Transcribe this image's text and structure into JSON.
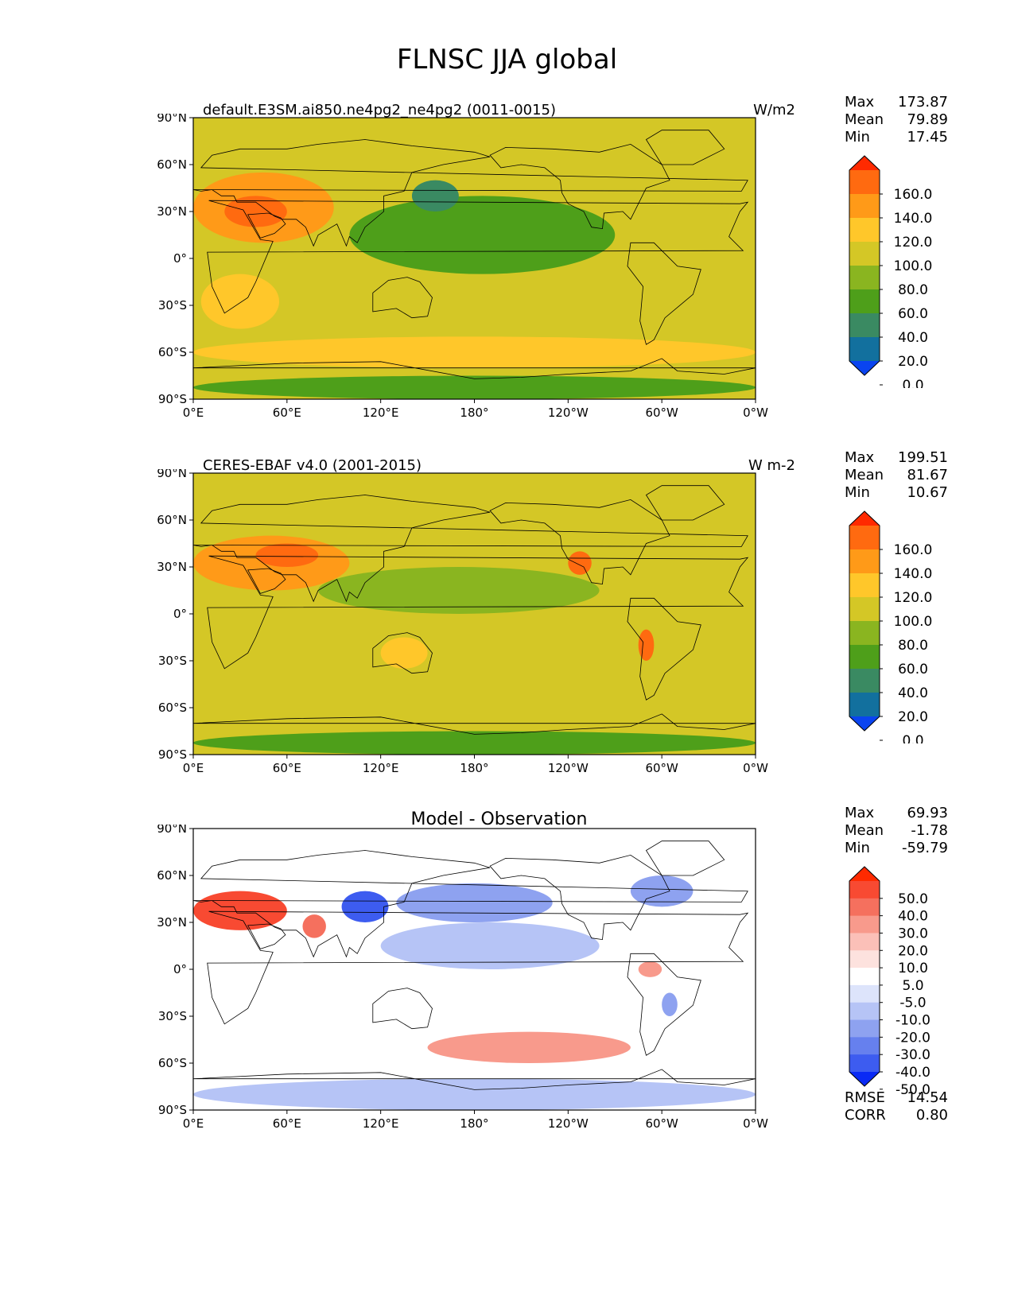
{
  "page": {
    "title": "FLNSC JJA global"
  },
  "axes": {
    "lat_ticks": [
      "90°N",
      "60°N",
      "30°N",
      "0°",
      "30°S",
      "60°S",
      "90°S"
    ],
    "lon_ticks": [
      "0°E",
      "60°E",
      "120°E",
      "180°",
      "120°W",
      "60°W",
      "0°W"
    ]
  },
  "panels": [
    {
      "title": "default.E3SM.ai850.ne4pg2_ne4pg2 (0011-0015)",
      "units": "W/m2",
      "stats": [
        {
          "label": "Max",
          "value": "173.87"
        },
        {
          "label": "Mean",
          "value": "79.89"
        },
        {
          "label": "Min",
          "value": "17.45"
        }
      ],
      "colorbar": {
        "labels": [
          "160.0",
          "140.0",
          "120.0",
          "100.0",
          "80.0",
          "60.0",
          "40.0",
          "20.0",
          "0.0"
        ],
        "colors": [
          "#ff2a00",
          "#ff6a10",
          "#ff9a18",
          "#ffc72a",
          "#d4c726",
          "#8ab520",
          "#4e9f1a",
          "#3a8a62",
          "#12709e",
          "#0a44f0"
        ]
      }
    },
    {
      "title": "CERES-EBAF v4.0 (2001-2015)",
      "units": "W m-2",
      "stats": [
        {
          "label": "Max",
          "value": "199.51"
        },
        {
          "label": "Mean",
          "value": "81.67"
        },
        {
          "label": "Min",
          "value": "10.67"
        }
      ],
      "colorbar": {
        "labels": [
          "160.0",
          "140.0",
          "120.0",
          "100.0",
          "80.0",
          "60.0",
          "40.0",
          "20.0",
          "0.0"
        ],
        "colors": [
          "#ff2a00",
          "#ff6a10",
          "#ff9a18",
          "#ffc72a",
          "#d4c726",
          "#8ab520",
          "#4e9f1a",
          "#3a8a62",
          "#12709e",
          "#0a44f0"
        ]
      }
    },
    {
      "title": "Model - Observation",
      "units": "",
      "stats": [
        {
          "label": "Max",
          "value": "69.93"
        },
        {
          "label": "Mean",
          "value": "-1.78"
        },
        {
          "label": "Min",
          "value": "-59.79"
        }
      ],
      "colorbar": {
        "labels": [
          "50.0",
          "40.0",
          "30.0",
          "20.0",
          "10.0",
          "5.0",
          "-5.0",
          "-10.0",
          "-20.0",
          "-30.0",
          "-40.0",
          "-50.0"
        ],
        "colors": [
          "#ff2a00",
          "#f84a32",
          "#f5705e",
          "#f89a8c",
          "#fbc0b8",
          "#fde2de",
          "#ffffff",
          "#dde4fb",
          "#b6c4f6",
          "#8ea2f0",
          "#6680ee",
          "#3d5cf0",
          "#0a2af5"
        ]
      },
      "error_stats": [
        {
          "label": "RMSE",
          "value": "14.54"
        },
        {
          "label": "CORR",
          "value": "0.80"
        }
      ]
    }
  ],
  "chart_data": [
    {
      "type": "heatmap",
      "title": "default.E3SM.ai850.ne4pg2_ne4pg2 (0011-0015)",
      "units": "W/m2",
      "xlim": [
        0,
        360
      ],
      "ylim": [
        -90,
        90
      ],
      "levels": [
        0,
        20,
        40,
        60,
        80,
        100,
        120,
        140,
        160
      ],
      "max": 173.87,
      "mean": 79.89,
      "min": 17.45,
      "regions": [
        {
          "lon": [
            0,
            90
          ],
          "lat": [
            10,
            55
          ],
          "value": 125
        },
        {
          "lon": [
            20,
            60
          ],
          "lat": [
            20,
            40
          ],
          "value": 150
        },
        {
          "lon": [
            100,
            270
          ],
          "lat": [
            -10,
            40
          ],
          "value": 55
        },
        {
          "lon": [
            140,
            170
          ],
          "lat": [
            30,
            50
          ],
          "value": 35
        },
        {
          "lon": [
            5,
            55
          ],
          "lat": [
            -45,
            -10
          ],
          "value": 105
        },
        {
          "lon": [
            0,
            360
          ],
          "lat": [
            -70,
            -50
          ],
          "value": 105
        },
        {
          "lon": [
            0,
            360
          ],
          "lat": [
            -90,
            -75
          ],
          "value": 45
        }
      ]
    },
    {
      "type": "heatmap",
      "title": "CERES-EBAF v4.0 (2001-2015)",
      "units": "W m-2",
      "xlim": [
        0,
        360
      ],
      "ylim": [
        -90,
        90
      ],
      "levels": [
        0,
        20,
        40,
        60,
        80,
        100,
        120,
        140,
        160
      ],
      "max": 199.51,
      "mean": 81.67,
      "min": 10.67,
      "regions": [
        {
          "lon": [
            0,
            100
          ],
          "lat": [
            15,
            50
          ],
          "value": 130
        },
        {
          "lon": [
            40,
            80
          ],
          "lat": [
            30,
            45
          ],
          "value": 155
        },
        {
          "lon": [
            240,
            255
          ],
          "lat": [
            25,
            40
          ],
          "value": 140
        },
        {
          "lon": [
            285,
            295
          ],
          "lat": [
            -30,
            -10
          ],
          "value": 150
        },
        {
          "lon": [
            120,
            150
          ],
          "lat": [
            -35,
            -15
          ],
          "value": 115
        },
        {
          "lon": [
            80,
            260
          ],
          "lat": [
            0,
            30
          ],
          "value": 60
        },
        {
          "lon": [
            0,
            360
          ],
          "lat": [
            -90,
            -75
          ],
          "value": 50
        }
      ]
    },
    {
      "type": "heatmap",
      "title": "Model - Observation",
      "xlim": [
        0,
        360
      ],
      "ylim": [
        -90,
        90
      ],
      "levels": [
        -50,
        -40,
        -30,
        -20,
        -10,
        -5,
        5,
        10,
        20,
        30,
        40,
        50
      ],
      "max": 69.93,
      "mean": -1.78,
      "min": -59.79,
      "rmse": 14.54,
      "corr": 0.8,
      "regions": [
        {
          "lon": [
            0,
            60
          ],
          "lat": [
            25,
            50
          ],
          "value": 40
        },
        {
          "lon": [
            70,
            85
          ],
          "lat": [
            20,
            35
          ],
          "value": 35
        },
        {
          "lon": [
            95,
            125
          ],
          "lat": [
            30,
            50
          ],
          "value": -45
        },
        {
          "lon": [
            130,
            230
          ],
          "lat": [
            30,
            55
          ],
          "value": -30
        },
        {
          "lon": [
            120,
            260
          ],
          "lat": [
            0,
            30
          ],
          "value": -15
        },
        {
          "lon": [
            280,
            320
          ],
          "lat": [
            40,
            60
          ],
          "value": -25
        },
        {
          "lon": [
            285,
            300
          ],
          "lat": [
            -5,
            5
          ],
          "value": 25
        },
        {
          "lon": [
            300,
            310
          ],
          "lat": [
            -30,
            -15
          ],
          "value": -30
        },
        {
          "lon": [
            0,
            360
          ],
          "lat": [
            -90,
            -70
          ],
          "value": -15
        },
        {
          "lon": [
            150,
            280
          ],
          "lat": [
            -60,
            -40
          ],
          "value": 20
        }
      ]
    }
  ]
}
